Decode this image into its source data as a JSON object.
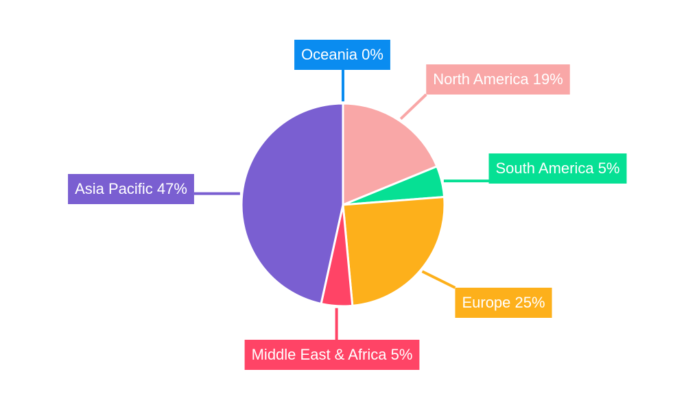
{
  "chart_data": {
    "type": "pie",
    "categories": [
      "North America",
      "South America",
      "Europe",
      "Middle East & Africa",
      "Asia Pacific",
      "Oceania"
    ],
    "values": [
      19,
      5,
      25,
      5,
      47,
      0
    ],
    "value_labels": [
      "North America 19%",
      "South America 5%",
      "Europe 25%",
      "Middle East & Africa 5%",
      "Asia Pacific 47%",
      "Oceania 0%"
    ],
    "colors": [
      "#f9a7a7",
      "#06e094",
      "#fdb01b",
      "#ff4466",
      "#7a5fd1",
      "#0a8cf0"
    ]
  }
}
